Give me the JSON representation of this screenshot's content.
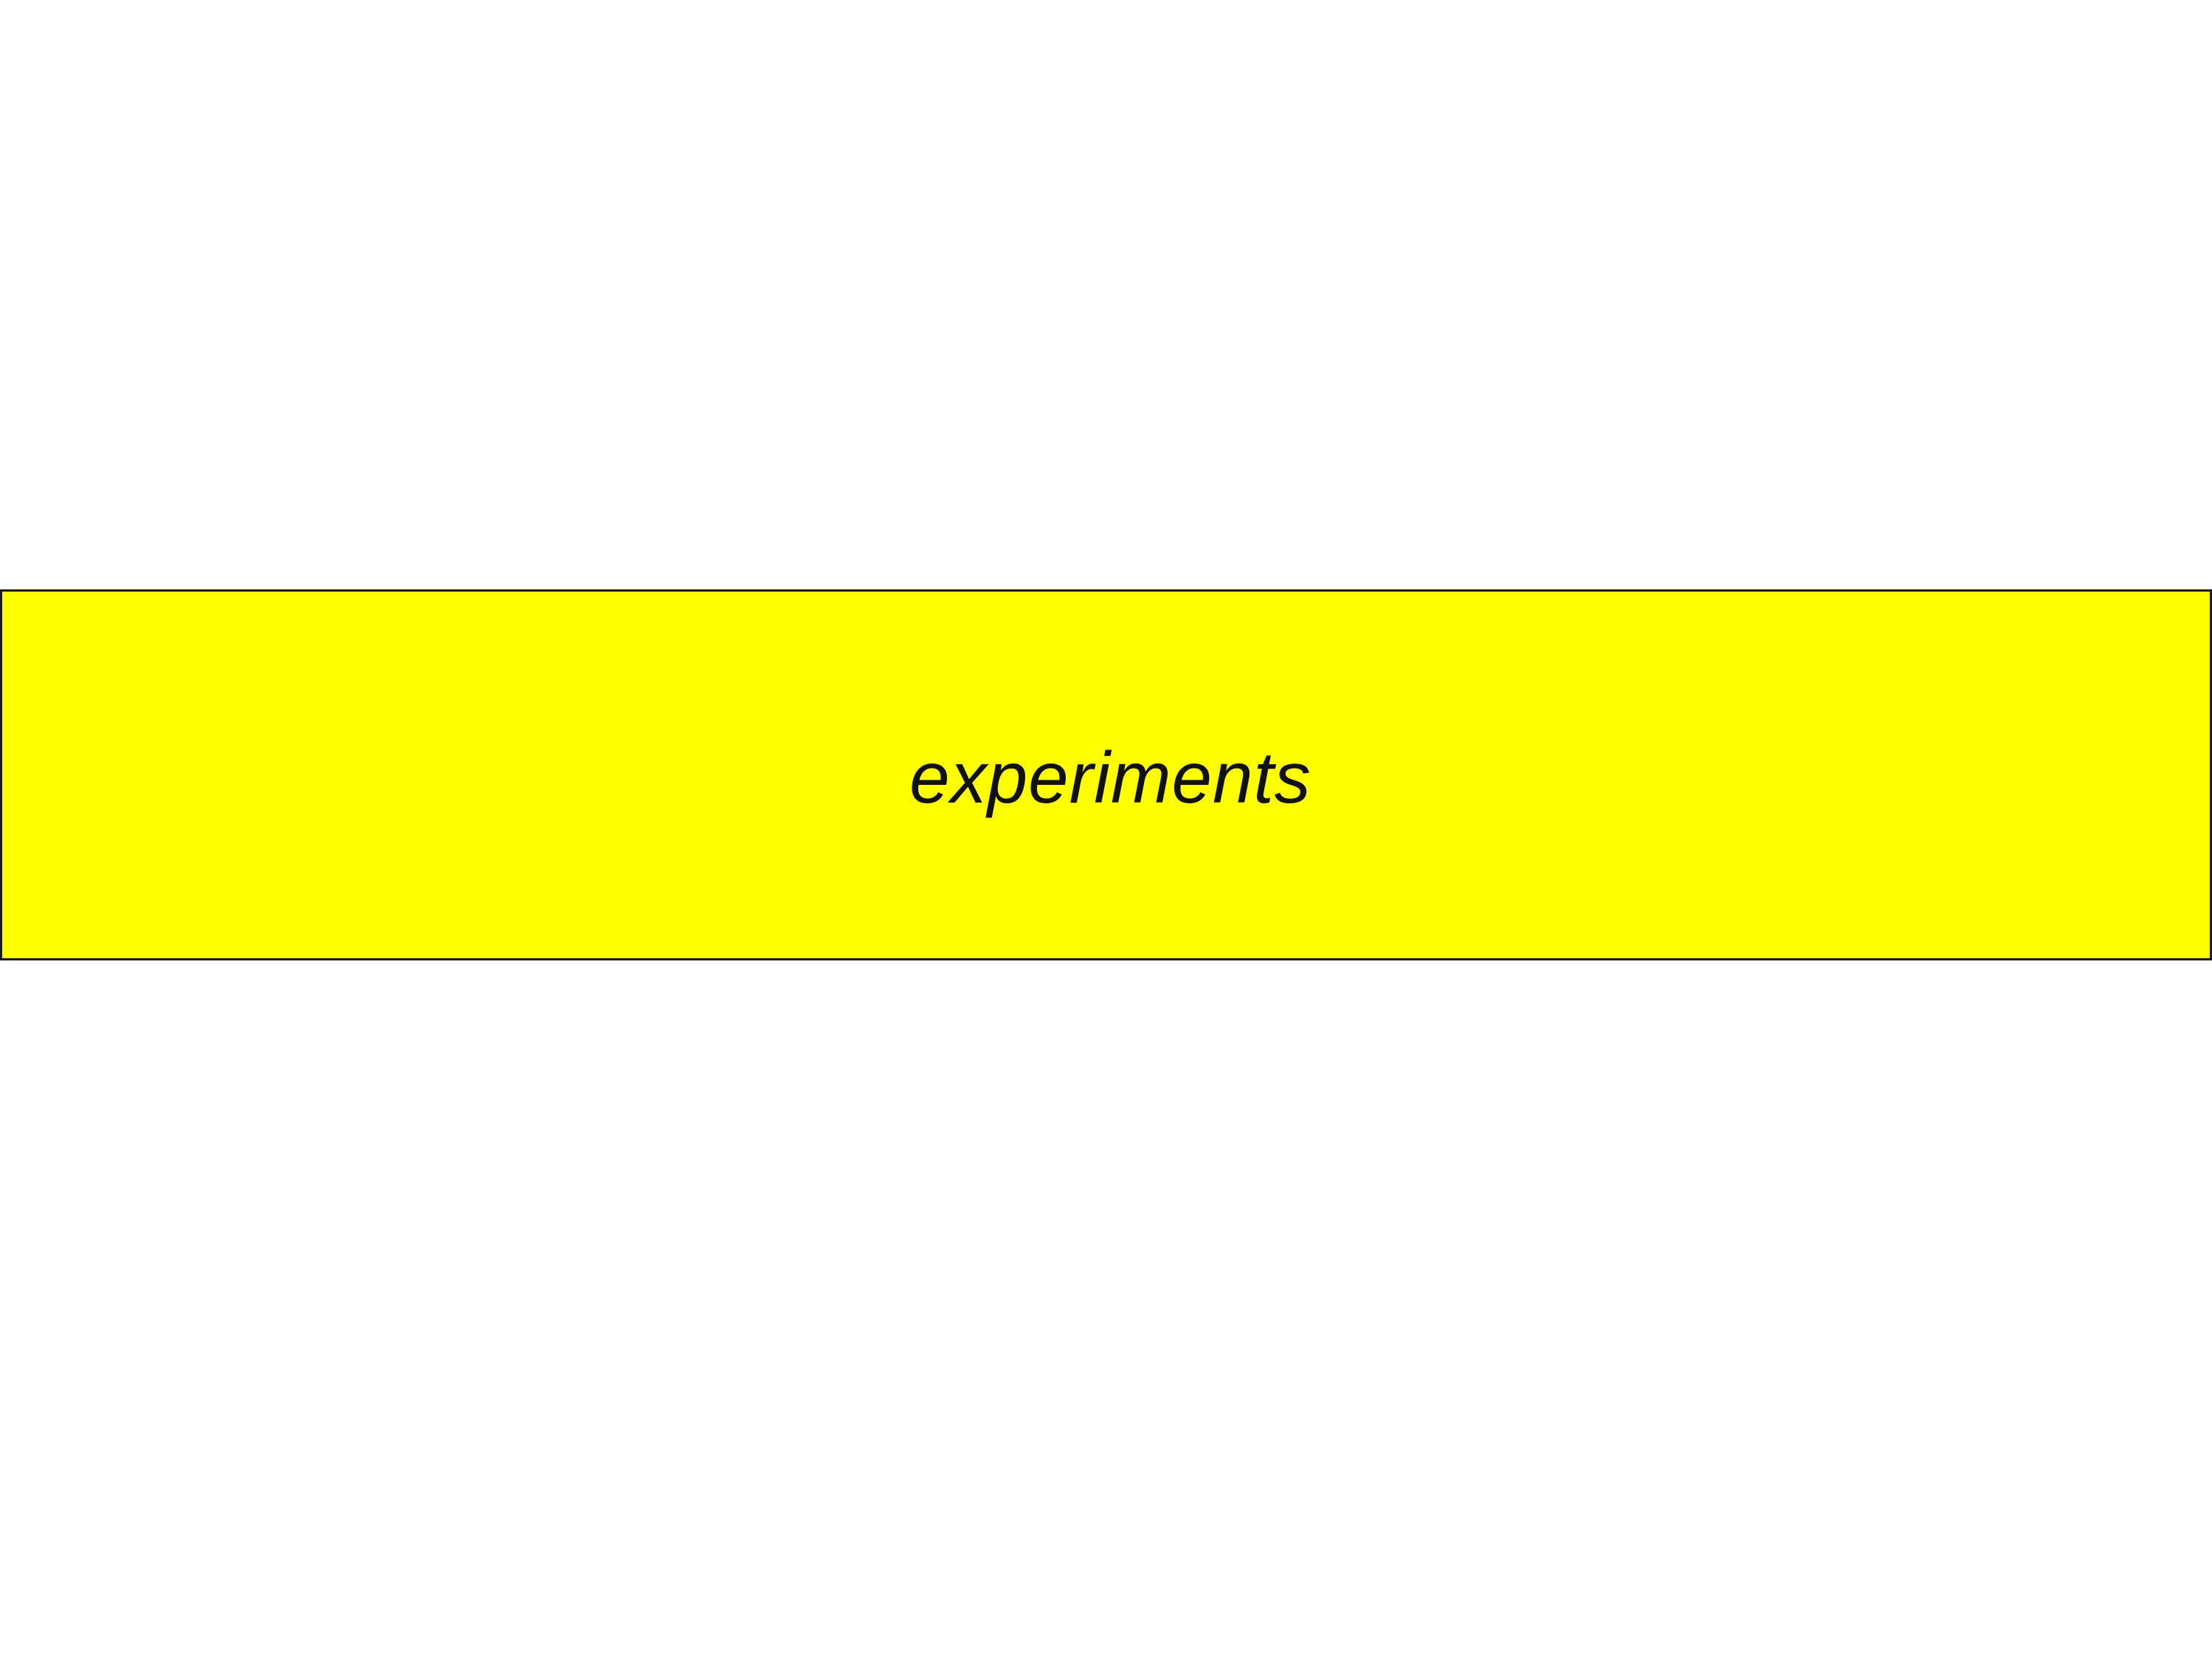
{
  "slide": {
    "background_color": "#ffffff",
    "banner": {
      "text": "experiments",
      "fill_color": "#ffff00",
      "border_color": "#1a1a1a",
      "text_color": "#111111"
    }
  }
}
